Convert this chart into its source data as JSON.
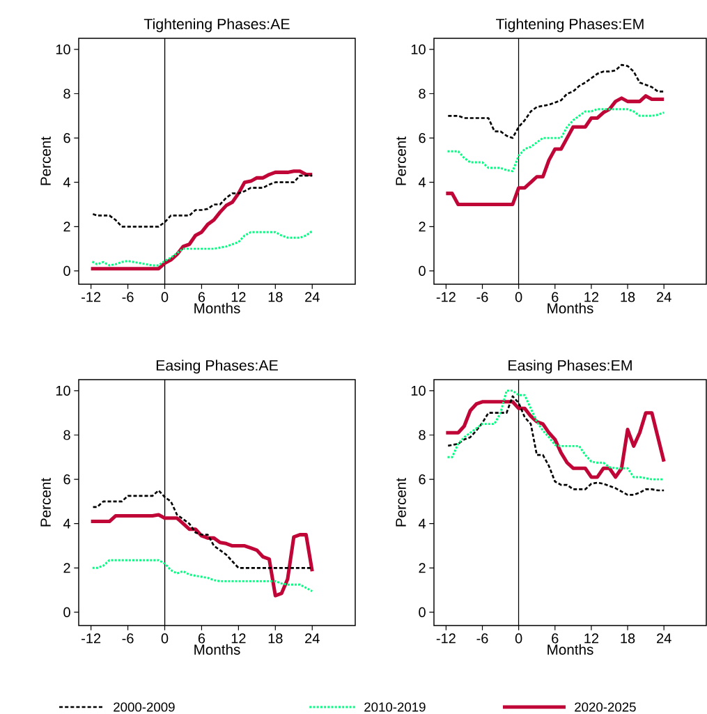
{
  "chart_data": [
    {
      "type": "line",
      "title": "Tightening Phases:AE",
      "xlabel": "Months",
      "ylabel": "Percent",
      "xlim": [
        -14,
        31
      ],
      "ylim": [
        -0.6,
        10.5
      ],
      "xticks": [
        -12,
        -6,
        0,
        6,
        12,
        18,
        24
      ],
      "yticks": [
        0,
        2,
        4,
        6,
        8,
        10
      ],
      "grid": false,
      "marker": "none",
      "legend": "bottom",
      "ref_lines": [
        {
          "axis": "x",
          "value": 0,
          "color": "#000000"
        }
      ],
      "x": [
        -12,
        -11,
        -10,
        -9,
        -8,
        -7,
        -6,
        -5,
        -4,
        -3,
        -2,
        -1,
        0,
        1,
        2,
        3,
        4,
        5,
        6,
        7,
        8,
        9,
        10,
        11,
        12,
        13,
        14,
        15,
        16,
        17,
        18,
        19,
        20,
        21,
        22,
        23,
        24
      ],
      "series": [
        {
          "name": "2000-2009",
          "color": "#000000",
          "line_style": "dashed",
          "values": [
            2.6,
            2.5,
            2.5,
            2.5,
            2.3,
            2.0,
            2.0,
            2.0,
            2.0,
            2.0,
            2.0,
            2.0,
            2.2,
            2.5,
            2.5,
            2.5,
            2.5,
            2.75,
            2.75,
            2.8,
            3.0,
            3.0,
            3.3,
            3.5,
            3.5,
            3.6,
            3.75,
            3.75,
            3.75,
            3.9,
            4.0,
            4.0,
            4.0,
            4.0,
            4.3,
            4.3,
            4.3
          ]
        },
        {
          "name": "2010-2019",
          "color": "#00ff80",
          "line_style": "dotted",
          "values": [
            0.45,
            0.3,
            0.4,
            0.25,
            0.3,
            0.4,
            0.45,
            0.4,
            0.35,
            0.3,
            0.25,
            0.25,
            0.45,
            0.6,
            0.8,
            1.0,
            1.0,
            1.0,
            1.0,
            1.0,
            1.0,
            1.05,
            1.1,
            1.2,
            1.3,
            1.6,
            1.75,
            1.75,
            1.75,
            1.75,
            1.75,
            1.6,
            1.5,
            1.5,
            1.5,
            1.6,
            1.8
          ]
        },
        {
          "name": "2020-2025",
          "color": "#c00537",
          "line_style": "solid",
          "values": [
            0.1,
            0.1,
            0.1,
            0.1,
            0.1,
            0.1,
            0.1,
            0.1,
            0.1,
            0.1,
            0.1,
            0.1,
            0.35,
            0.5,
            0.75,
            1.1,
            1.2,
            1.6,
            1.75,
            2.1,
            2.3,
            2.65,
            2.95,
            3.1,
            3.5,
            4.0,
            4.05,
            4.2,
            4.2,
            4.35,
            4.45,
            4.45,
            4.45,
            4.5,
            4.5,
            4.35,
            4.35
          ]
        }
      ]
    },
    {
      "type": "line",
      "title": "Tightening Phases:EM",
      "xlabel": "Months",
      "ylabel": "Percent",
      "xlim": [
        -14,
        31
      ],
      "ylim": [
        -0.6,
        10.5
      ],
      "xticks": [
        -12,
        -6,
        0,
        6,
        12,
        18,
        24
      ],
      "yticks": [
        0,
        2,
        4,
        6,
        8,
        10
      ],
      "grid": false,
      "marker": "none",
      "ref_lines": [
        {
          "axis": "x",
          "value": 0,
          "color": "#000000"
        }
      ],
      "x": [
        -12,
        -11,
        -10,
        -9,
        -8,
        -7,
        -6,
        -5,
        -4,
        -3,
        -2,
        -1,
        0,
        1,
        2,
        3,
        4,
        5,
        6,
        7,
        8,
        9,
        10,
        11,
        12,
        13,
        14,
        15,
        16,
        17,
        18,
        19,
        20,
        21,
        22,
        23,
        24
      ],
      "series": [
        {
          "color": "#000000",
          "line_style": "dashed",
          "values": [
            7.0,
            7.0,
            7.0,
            6.9,
            6.9,
            6.9,
            6.9,
            6.9,
            6.3,
            6.3,
            6.1,
            6.0,
            6.5,
            6.8,
            7.2,
            7.4,
            7.45,
            7.5,
            7.6,
            7.7,
            8.0,
            8.1,
            8.35,
            8.5,
            8.7,
            8.9,
            9.0,
            9.0,
            9.05,
            9.3,
            9.25,
            9.0,
            8.5,
            8.4,
            8.3,
            8.1,
            8.1
          ]
        },
        {
          "color": "#00ff80",
          "line_style": "dotted",
          "values": [
            5.4,
            5.4,
            5.4,
            5.1,
            4.9,
            4.9,
            4.9,
            4.65,
            4.65,
            4.65,
            4.55,
            4.5,
            5.2,
            5.5,
            5.6,
            5.8,
            6.0,
            6.0,
            6.0,
            6.0,
            6.5,
            6.8,
            7.0,
            7.2,
            7.2,
            7.3,
            7.3,
            7.3,
            7.3,
            7.3,
            7.3,
            7.2,
            7.0,
            7.0,
            7.0,
            7.05,
            7.15
          ]
        },
        {
          "color": "#c00537",
          "line_style": "solid",
          "values": [
            3.5,
            3.5,
            3.0,
            3.0,
            3.0,
            3.0,
            3.0,
            3.0,
            3.0,
            3.0,
            3.0,
            3.0,
            3.75,
            3.75,
            4.0,
            4.25,
            4.25,
            5.0,
            5.5,
            5.5,
            6.0,
            6.5,
            6.5,
            6.5,
            6.9,
            6.9,
            7.15,
            7.3,
            7.65,
            7.8,
            7.65,
            7.65,
            7.65,
            7.9,
            7.75,
            7.75,
            7.75
          ]
        }
      ]
    },
    {
      "type": "line",
      "title": "Easing Phases:AE",
      "xlabel": "Months",
      "ylabel": "Percent",
      "xlim": [
        -14,
        31
      ],
      "ylim": [
        -0.6,
        10.5
      ],
      "xticks": [
        -12,
        -6,
        0,
        6,
        12,
        18,
        24
      ],
      "yticks": [
        0,
        2,
        4,
        6,
        8,
        10
      ],
      "grid": false,
      "marker": "none",
      "ref_lines": [
        {
          "axis": "x",
          "value": 0,
          "color": "#000000"
        }
      ],
      "x": [
        -12,
        -11,
        -10,
        -9,
        -8,
        -7,
        -6,
        -5,
        -4,
        -3,
        -2,
        -1,
        0,
        1,
        2,
        3,
        4,
        5,
        6,
        7,
        8,
        9,
        10,
        11,
        12,
        13,
        14,
        15,
        16,
        17,
        18,
        19,
        20,
        21,
        22,
        23,
        24
      ],
      "series": [
        {
          "color": "#000000",
          "line_style": "dashed",
          "values": [
            4.75,
            4.75,
            5.0,
            5.0,
            5.0,
            5.0,
            5.25,
            5.25,
            5.25,
            5.25,
            5.25,
            5.5,
            5.2,
            5.0,
            4.4,
            4.2,
            4.0,
            3.6,
            3.5,
            3.5,
            3.0,
            2.8,
            2.6,
            2.3,
            2.0,
            2.0,
            2.0,
            2.0,
            2.0,
            2.0,
            2.0,
            2.0,
            2.0,
            2.0,
            2.0,
            2.0,
            2.0
          ]
        },
        {
          "color": "#00ff80",
          "line_style": "dotted",
          "values": [
            2.0,
            2.0,
            2.1,
            2.35,
            2.35,
            2.35,
            2.35,
            2.35,
            2.35,
            2.35,
            2.35,
            2.35,
            2.2,
            1.9,
            1.75,
            1.85,
            1.7,
            1.65,
            1.6,
            1.55,
            1.45,
            1.4,
            1.4,
            1.4,
            1.4,
            1.4,
            1.4,
            1.4,
            1.4,
            1.4,
            1.4,
            1.3,
            1.25,
            1.25,
            1.25,
            1.1,
            0.95
          ]
        },
        {
          "color": "#c00537",
          "line_style": "solid",
          "values": [
            4.1,
            4.1,
            4.1,
            4.1,
            4.35,
            4.35,
            4.35,
            4.35,
            4.35,
            4.35,
            4.35,
            4.4,
            4.25,
            4.25,
            4.25,
            4.0,
            3.75,
            3.75,
            3.45,
            3.35,
            3.35,
            3.15,
            3.1,
            3.0,
            3.0,
            3.0,
            2.9,
            2.8,
            2.5,
            2.4,
            0.75,
            0.85,
            1.5,
            3.4,
            3.5,
            3.5,
            1.85
          ]
        }
      ]
    },
    {
      "type": "line",
      "title": "Easing Phases:EM",
      "xlabel": "Months",
      "ylabel": "Percent",
      "xlim": [
        -14,
        31
      ],
      "ylim": [
        -0.6,
        10.5
      ],
      "xticks": [
        -12,
        -6,
        0,
        6,
        12,
        18,
        24
      ],
      "yticks": [
        0,
        2,
        4,
        6,
        8,
        10
      ],
      "grid": false,
      "marker": "none",
      "ref_lines": [
        {
          "axis": "x",
          "value": 0,
          "color": "#000000"
        }
      ],
      "x": [
        -12,
        -11,
        -10,
        -9,
        -8,
        -7,
        -6,
        -5,
        -4,
        -3,
        -2,
        -1,
        0,
        1,
        2,
        3,
        4,
        5,
        6,
        7,
        8,
        9,
        10,
        11,
        12,
        13,
        14,
        15,
        16,
        17,
        18,
        19,
        20,
        21,
        22,
        23,
        24
      ],
      "series": [
        {
          "color": "#000000",
          "line_style": "dashed",
          "values": [
            7.5,
            7.55,
            7.6,
            7.8,
            7.9,
            8.2,
            8.55,
            9.0,
            9.0,
            9.0,
            9.0,
            9.75,
            9.45,
            8.8,
            8.5,
            7.1,
            7.1,
            6.6,
            5.9,
            5.75,
            5.75,
            5.55,
            5.55,
            5.55,
            5.8,
            5.85,
            5.8,
            5.7,
            5.6,
            5.45,
            5.3,
            5.3,
            5.4,
            5.55,
            5.55,
            5.5,
            5.5
          ]
        },
        {
          "color": "#00ff80",
          "line_style": "dotted",
          "values": [
            7.0,
            7.0,
            7.6,
            7.9,
            8.1,
            8.3,
            8.5,
            8.5,
            8.5,
            9.0,
            10.0,
            10.0,
            9.8,
            9.8,
            9.2,
            8.6,
            8.2,
            7.9,
            7.55,
            7.5,
            7.5,
            7.5,
            7.5,
            7.1,
            6.8,
            6.75,
            6.75,
            6.55,
            6.5,
            6.5,
            6.5,
            6.1,
            6.1,
            6.05,
            6.0,
            6.0,
            6.0
          ]
        },
        {
          "color": "#c00537",
          "line_style": "solid",
          "values": [
            8.1,
            8.1,
            8.1,
            8.4,
            9.1,
            9.4,
            9.5,
            9.5,
            9.5,
            9.5,
            9.5,
            9.5,
            9.2,
            9.2,
            8.85,
            8.6,
            8.5,
            8.1,
            7.8,
            7.2,
            6.75,
            6.5,
            6.5,
            6.5,
            6.1,
            6.1,
            6.5,
            6.5,
            6.1,
            6.5,
            8.25,
            7.5,
            8.1,
            9.0,
            9.0,
            7.9,
            6.8
          ]
        }
      ]
    }
  ]
}
